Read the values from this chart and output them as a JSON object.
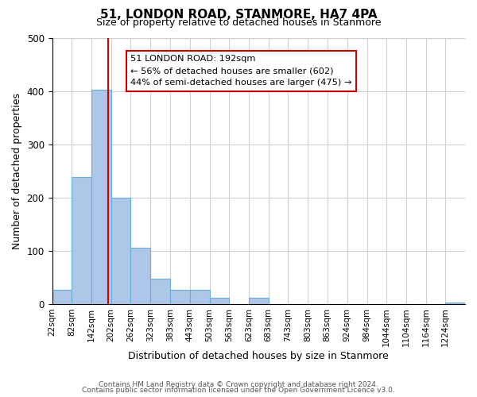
{
  "title": "51, LONDON ROAD, STANMORE, HA7 4PA",
  "subtitle": "Size of property relative to detached houses in Stanmore",
  "xlabel": "Distribution of detached houses by size in Stanmore",
  "ylabel": "Number of detached properties",
  "bar_edges": [
    22,
    82,
    142,
    202,
    262,
    323,
    383,
    443,
    503,
    563,
    623,
    683,
    743,
    803,
    863,
    924,
    984,
    1044,
    1104,
    1164,
    1224,
    1284
  ],
  "bar_heights": [
    27,
    238,
    403,
    199,
    106,
    48,
    26,
    26,
    11,
    0,
    11,
    0,
    0,
    0,
    0,
    0,
    0,
    0,
    0,
    0,
    3
  ],
  "bar_color": "#aec6e8",
  "bar_edge_color": "#6aaed6",
  "property_line_x": 192,
  "property_line_color": "#cc0000",
  "ylim": [
    0,
    500
  ],
  "annotation_title": "51 LONDON ROAD: 192sqm",
  "annotation_line1": "← 56% of detached houses are smaller (602)",
  "annotation_line2": "44% of semi-detached houses are larger (475) →",
  "annotation_box_color": "#ffffff",
  "annotation_border_color": "#cc0000",
  "footer_line1": "Contains HM Land Registry data © Crown copyright and database right 2024.",
  "footer_line2": "Contains public sector information licensed under the Open Government Licence v3.0.",
  "tick_labels": [
    "22sqm",
    "82sqm",
    "142sqm",
    "202sqm",
    "262sqm",
    "323sqm",
    "383sqm",
    "443sqm",
    "503sqm",
    "563sqm",
    "623sqm",
    "683sqm",
    "743sqm",
    "803sqm",
    "863sqm",
    "924sqm",
    "984sqm",
    "1044sqm",
    "1104sqm",
    "1164sqm",
    "1224sqm"
  ],
  "grid_color": "#d0d0d0",
  "background_color": "#ffffff",
  "fig_width": 6.0,
  "fig_height": 5.0
}
